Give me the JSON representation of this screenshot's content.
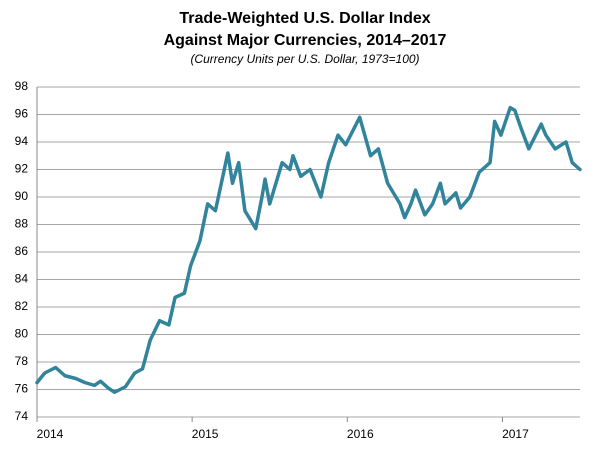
{
  "chart_data": {
    "type": "line",
    "title": [
      "Trade-Weighted U.S. Dollar Index",
      "Against Major Currencies, 2014–2017"
    ],
    "subtitle": "(Currency  Units per U.S. Dollar, 1973=100)",
    "x": [
      2014.0,
      2014.05,
      2014.12,
      2014.18,
      2014.25,
      2014.31,
      2014.37,
      2014.41,
      2014.46,
      2014.5,
      2014.57,
      2014.63,
      2014.68,
      2014.73,
      2014.79,
      2014.85,
      2014.89,
      2014.95,
      2014.99,
      2015.05,
      2015.1,
      2015.15,
      2015.23,
      2015.26,
      2015.3,
      2015.34,
      2015.41,
      2015.45,
      2015.47,
      2015.5,
      2015.54,
      2015.58,
      2015.63,
      2015.65,
      2015.7,
      2015.76,
      2015.83,
      2015.88,
      2015.94,
      2015.99,
      2016.08,
      2016.15,
      2016.2,
      2016.26,
      2016.34,
      2016.37,
      2016.41,
      2016.44,
      2016.5,
      2016.55,
      2016.6,
      2016.63,
      2016.7,
      2016.73,
      2016.79,
      2016.85,
      2016.92,
      2016.95,
      2016.99,
      2017.05,
      2017.08,
      2017.12,
      2017.17,
      2017.25,
      2017.28,
      2017.34,
      2017.41,
      2017.45,
      2017.5
    ],
    "series": [
      {
        "color": "#31849b",
        "values": [
          76.5,
          77.2,
          77.6,
          77.0,
          76.8,
          76.5,
          76.3,
          76.6,
          76.1,
          75.8,
          76.2,
          77.2,
          77.5,
          79.6,
          81.0,
          80.7,
          82.7,
          83.0,
          85.0,
          86.8,
          89.5,
          89.0,
          93.2,
          91.0,
          92.5,
          89.0,
          87.7,
          90.0,
          91.3,
          89.5,
          91.0,
          92.5,
          92.0,
          93.0,
          91.5,
          92.0,
          90.0,
          92.5,
          94.5,
          93.8,
          95.8,
          93.0,
          93.5,
          91.0,
          89.5,
          88.5,
          89.5,
          90.5,
          88.7,
          89.5,
          91.0,
          89.5,
          90.3,
          89.2,
          90.0,
          91.8,
          92.5,
          95.5,
          94.5,
          96.5,
          96.3,
          95.0,
          93.5,
          95.3,
          94.5,
          93.5,
          94.0,
          92.5,
          92.0
        ]
      }
    ],
    "xlim": [
      2014,
      2017.5
    ],
    "xticks": [
      2014,
      2015,
      2016,
      2017
    ],
    "ylim": [
      74,
      98
    ],
    "yticks": [
      74,
      76,
      78,
      80,
      82,
      84,
      86,
      88,
      90,
      92,
      94,
      96,
      98
    ],
    "grid": true
  }
}
